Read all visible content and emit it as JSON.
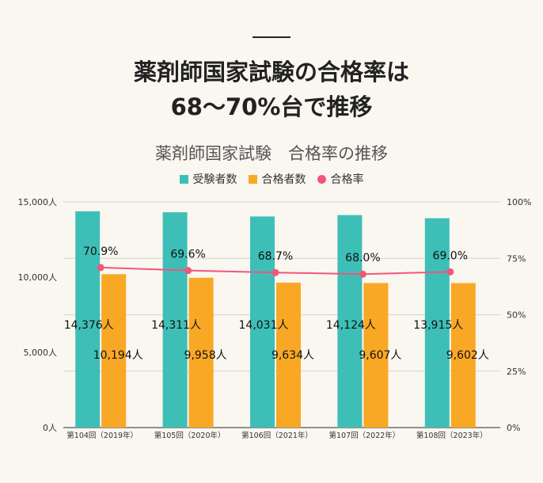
{
  "headline": {
    "line1": "薬剤師国家試験の合格率は",
    "line2": "68～70%台で推移"
  },
  "chart_data": {
    "type": "bar+line",
    "title": "薬剤師国家試験　合格率の推移",
    "categories": [
      "第104回（2019年）",
      "第105回（2020年）",
      "第106回（2021年）",
      "第107回（2022年）",
      "第108回（2023年）"
    ],
    "series": [
      {
        "name": "受験者数",
        "type": "bar",
        "axis": "left",
        "color": "#3dbfb8",
        "values": [
          14376,
          14311,
          14031,
          14124,
          13915
        ],
        "labels": [
          "14,376人",
          "14,311人",
          "14,031人",
          "14,124人",
          "13,915人"
        ]
      },
      {
        "name": "合格者数",
        "type": "bar",
        "axis": "left",
        "color": "#f9a825",
        "values": [
          10194,
          9958,
          9634,
          9607,
          9602
        ],
        "labels": [
          "10,194人",
          "9,958人",
          "9,634人",
          "9,607人",
          "9,602人"
        ]
      },
      {
        "name": "合格率",
        "type": "line",
        "axis": "right",
        "color": "#f0577a",
        "values": [
          70.9,
          69.6,
          68.7,
          68.0,
          69.0
        ],
        "labels": [
          "70.9%",
          "69.6%",
          "68.7%",
          "68.0%",
          "69.0%"
        ]
      }
    ],
    "y_left": {
      "range": [
        0,
        15000
      ],
      "ticks": [
        "0人",
        "5,000人",
        "10,000人",
        "15,000人"
      ]
    },
    "y_right": {
      "range": [
        0,
        100
      ],
      "ticks": [
        "0%",
        "25%",
        "50%",
        "75%",
        "100%"
      ]
    },
    "grid": true,
    "legend": "top-center"
  }
}
